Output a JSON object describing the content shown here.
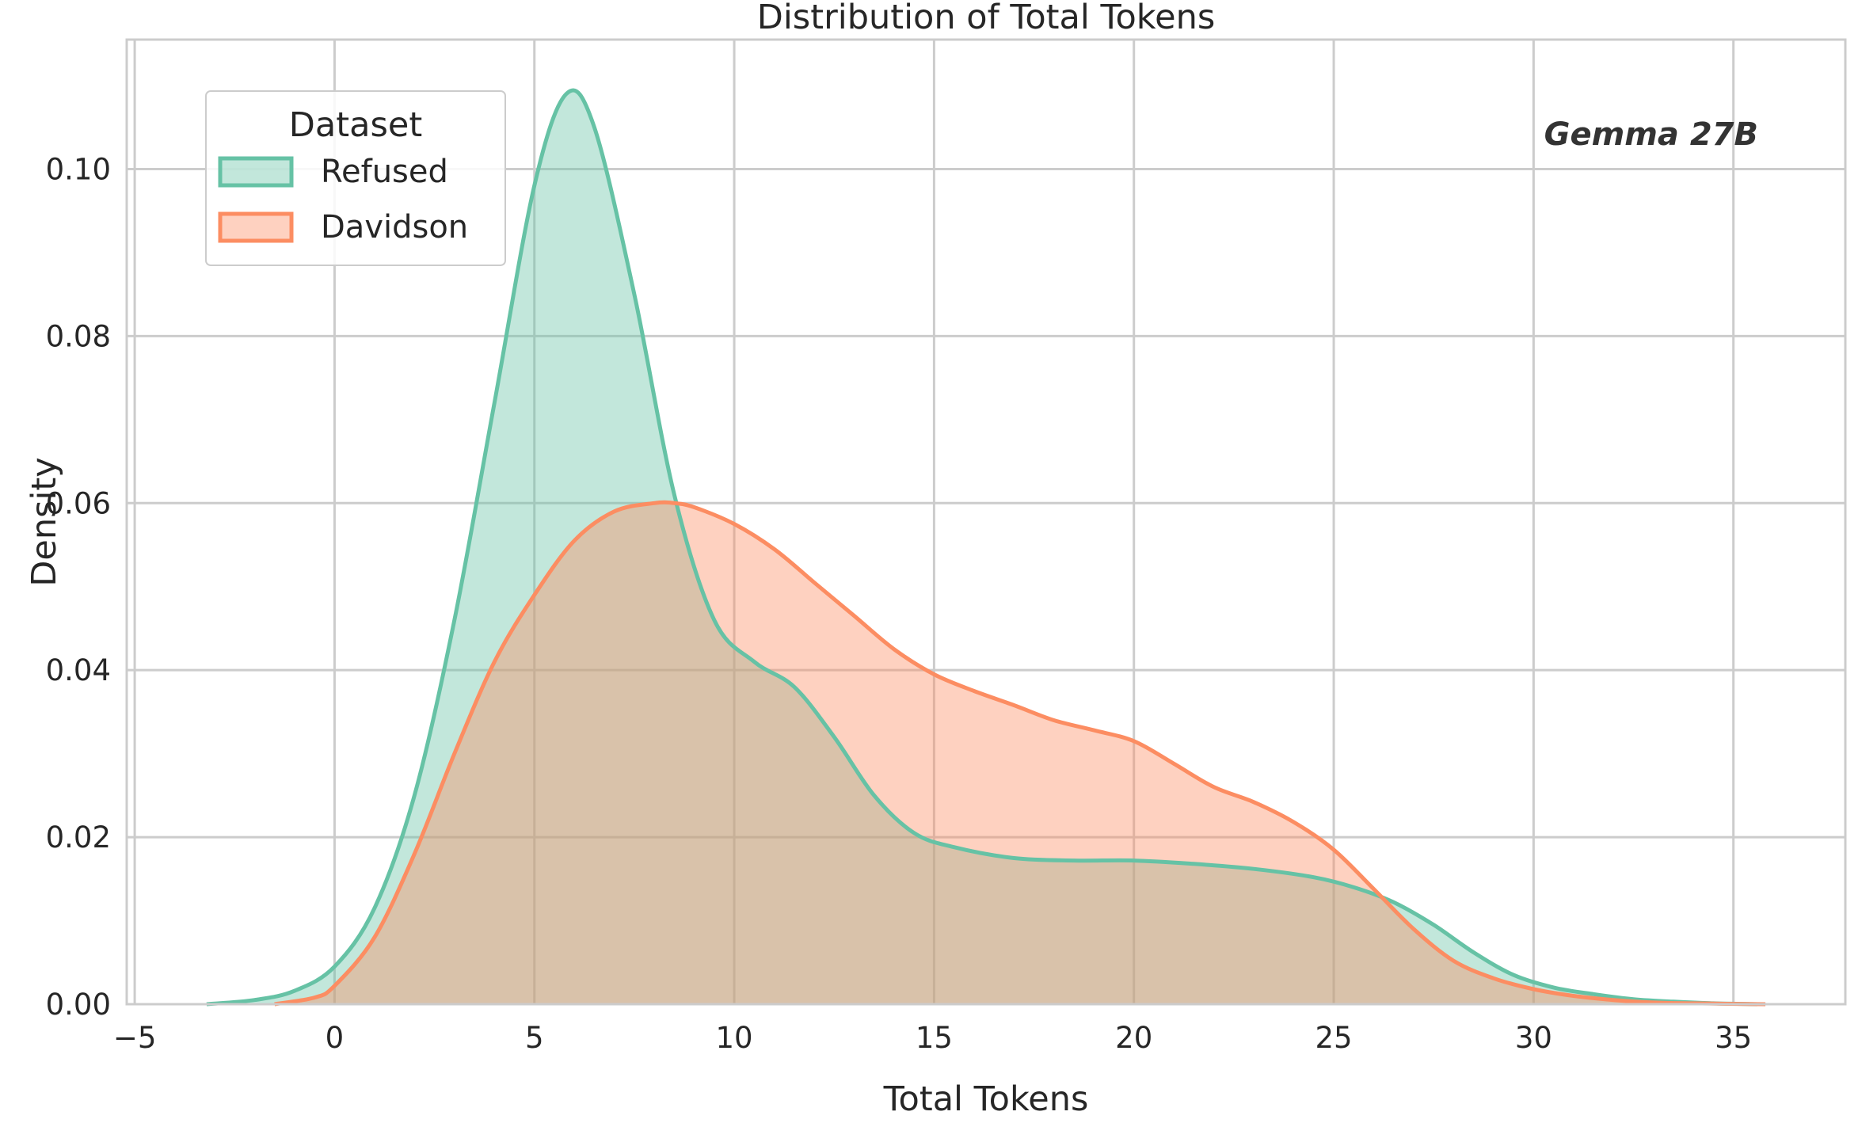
{
  "colors": {
    "refused": "#66c2a5",
    "davidson": "#fc8d62",
    "grid": "#cccccc",
    "frame": "#cccccc",
    "text": "#262626"
  },
  "chart_data": {
    "type": "area",
    "title": "Distribution of Total Tokens",
    "xlabel": "Total Tokens",
    "ylabel": "Density",
    "xlim": [
      -5.2,
      37.8
    ],
    "ylim": [
      0,
      0.1155
    ],
    "xticks": [
      -5,
      0,
      5,
      10,
      15,
      20,
      25,
      30,
      35
    ],
    "xtick_labels": [
      "−5",
      "0",
      "5",
      "10",
      "15",
      "20",
      "25",
      "30",
      "35"
    ],
    "yticks": [
      0,
      0.02,
      0.04,
      0.06,
      0.08,
      0.1
    ],
    "ytick_labels": [
      "0.00",
      "0.02",
      "0.04",
      "0.06",
      "0.08",
      "0.10"
    ],
    "grid": true,
    "legend": {
      "title": "Dataset",
      "position": "top-left"
    },
    "annotation": {
      "text": "Gemma 27B",
      "position": "top-right"
    },
    "series": [
      {
        "name": "Refused",
        "color": "#66c2a5",
        "x": [
          -3.2,
          -2,
          -1,
          0,
          1,
          2,
          3,
          4,
          5,
          5.8,
          6.5,
          7.5,
          8.5,
          9.5,
          10.5,
          11.5,
          12.5,
          13.5,
          14.5,
          15.5,
          17,
          18.5,
          20,
          21.5,
          23,
          24.5,
          25.5,
          26.5,
          27.5,
          28.5,
          29.5,
          30.5,
          31.5,
          32.5,
          33.5,
          34.5,
          35.6
        ],
        "y": [
          0.0,
          0.0005,
          0.0016,
          0.0045,
          0.0115,
          0.025,
          0.046,
          0.072,
          0.098,
          0.109,
          0.105,
          0.085,
          0.061,
          0.046,
          0.041,
          0.038,
          0.032,
          0.025,
          0.0205,
          0.0188,
          0.0175,
          0.0172,
          0.0172,
          0.0168,
          0.0162,
          0.0152,
          0.014,
          0.0122,
          0.0095,
          0.0062,
          0.0035,
          0.002,
          0.0012,
          0.0006,
          0.0003,
          0.0001,
          0.0
        ]
      },
      {
        "name": "Davidson",
        "color": "#fc8d62",
        "x": [
          -1.5,
          -0.5,
          0,
          1,
          2,
          3,
          4,
          5,
          6,
          7,
          8,
          8.5,
          9,
          10,
          11,
          12,
          13,
          14,
          15,
          16,
          17,
          18,
          19,
          20,
          21,
          22,
          23,
          24,
          25,
          26,
          27,
          28,
          29,
          30,
          31,
          32,
          33,
          34,
          35.8
        ],
        "y": [
          0.0,
          0.0008,
          0.0022,
          0.008,
          0.018,
          0.03,
          0.041,
          0.049,
          0.0555,
          0.059,
          0.06,
          0.06,
          0.0595,
          0.0575,
          0.0545,
          0.0505,
          0.0465,
          0.0425,
          0.0395,
          0.0375,
          0.0358,
          0.034,
          0.0328,
          0.0315,
          0.0288,
          0.026,
          0.0242,
          0.0218,
          0.0185,
          0.0138,
          0.009,
          0.0052,
          0.0031,
          0.0018,
          0.001,
          0.0005,
          0.0002,
          0.0001,
          0.0
        ]
      }
    ]
  }
}
